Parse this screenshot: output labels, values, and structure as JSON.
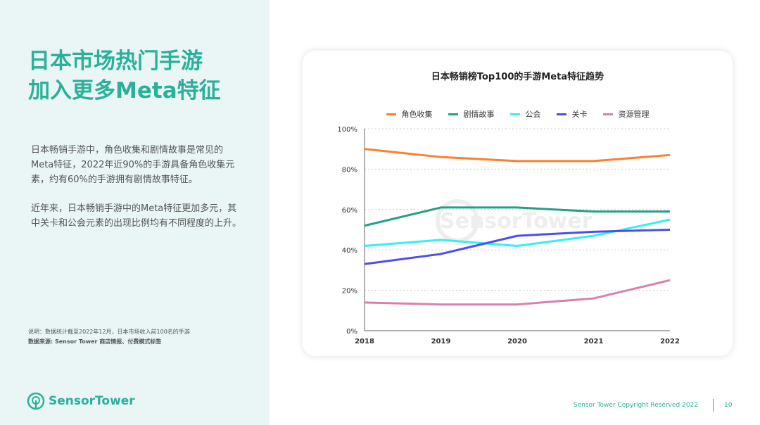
{
  "left": {
    "title_lines": [
      "日本市场热门手游",
      "加入更多Meta特征"
    ],
    "paragraph1": "日本畅销手游中，角色收集和剧情故事是常见的Meta特征，2022年近90%的手游具备角色收集元素，约有60%的手游拥有剧情故事特征。",
    "paragraph2": "近年来，日本畅销手游中的Meta特征更加多元，其中关卡和公会元素的出现比例均有不同程度的上升。",
    "note": "说明：数据统计截至2022年12月，日本市场收入前100名的手游",
    "source": "数据来源: Sensor Tower 商店情报、付费模式标签",
    "logo_text": "SensorTower"
  },
  "footer": {
    "copyright": "Sensor Tower Copyright Reserved 2022",
    "page": "10"
  },
  "chart_data": {
    "type": "line",
    "title": "日本畅销榜Top100的手游Meta特征趋势",
    "categories": [
      "2018",
      "2019",
      "2020",
      "2021",
      "2022"
    ],
    "ylim": [
      0,
      100
    ],
    "yticks": [
      "0%",
      "20%",
      "40%",
      "60%",
      "80%",
      "100%"
    ],
    "grid": true,
    "legend": "top",
    "watermark": "SensorTower",
    "series": [
      {
        "name": "角色收集",
        "color": "#ff7f2a",
        "values": [
          90,
          86,
          84,
          84,
          87
        ]
      },
      {
        "name": "剧情故事",
        "color": "#22a08a",
        "values": [
          52,
          61,
          61,
          59,
          59
        ]
      },
      {
        "name": "公会",
        "color": "#33f0f5",
        "values": [
          42,
          45,
          42,
          47,
          55
        ]
      },
      {
        "name": "关卡",
        "color": "#4a4ef0",
        "values": [
          33,
          38,
          47,
          49,
          50
        ]
      },
      {
        "name": "资源管理",
        "color": "#d97fb0",
        "values": [
          14,
          13,
          13,
          16,
          25
        ]
      }
    ]
  }
}
